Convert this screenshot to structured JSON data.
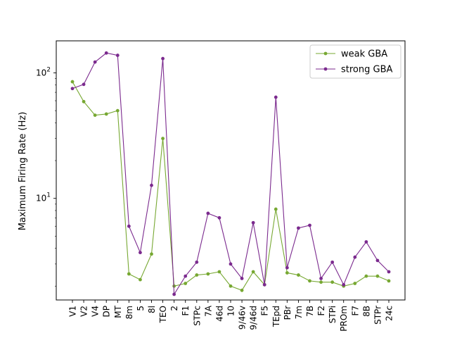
{
  "chart_data": {
    "type": "line",
    "title": "",
    "xlabel": "",
    "ylabel": "Maximum Firing Rate (Hz)",
    "yscale": "log",
    "ylim": [
      1.55,
      180
    ],
    "yticks": [
      {
        "value": 10,
        "base": "10",
        "exp": "1"
      },
      {
        "value": 100,
        "base": "10",
        "exp": "2"
      }
    ],
    "grid": false,
    "legend_position": "upper right",
    "categories": [
      "V1",
      "V2",
      "V4",
      "DP",
      "MT",
      "8m",
      "5",
      "8l",
      "TEO",
      "2",
      "F1",
      "STPc",
      "7A",
      "46d",
      "10",
      "9/46v",
      "9/46d",
      "F5",
      "TEpd",
      "PBr",
      "7m",
      "7B",
      "F2",
      "STPi",
      "PROm",
      "F7",
      "8B",
      "STPr",
      "24c"
    ],
    "series": [
      {
        "name": "weak GBA",
        "color": "#77a832",
        "values": [
          85,
          59,
          46,
          47,
          50,
          2.5,
          2.25,
          3.6,
          30,
          2.0,
          2.1,
          2.45,
          2.5,
          2.6,
          2.0,
          1.85,
          2.6,
          2.05,
          8.2,
          2.55,
          2.45,
          2.2,
          2.15,
          2.15,
          2.0,
          2.1,
          2.4,
          2.4,
          2.2
        ]
      },
      {
        "name": "strong GBA",
        "color": "#7b2a8e",
        "values": [
          75,
          81,
          122,
          144,
          138,
          6.0,
          3.7,
          12.7,
          130,
          1.72,
          2.4,
          3.1,
          7.6,
          7.0,
          3.0,
          2.3,
          6.4,
          2.05,
          64,
          2.8,
          5.8,
          6.1,
          2.3,
          3.1,
          2.05,
          3.4,
          4.5,
          3.2,
          2.6
        ]
      }
    ]
  }
}
